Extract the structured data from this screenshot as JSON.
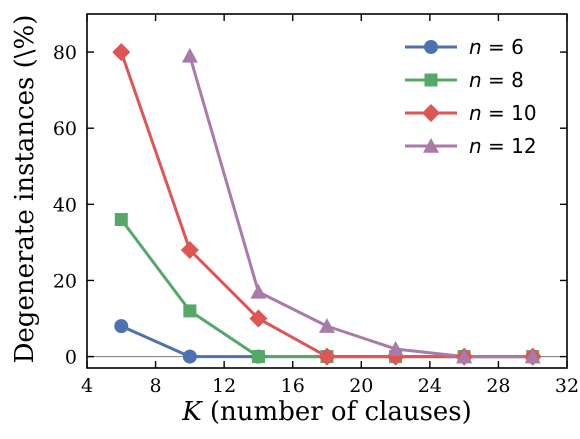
{
  "chart_data": {
    "type": "line",
    "xlabel_var": "K",
    "xlabel_rest": " (number of clauses)",
    "ylabel": "Degenerate instances (\\%)",
    "xlim": [
      4,
      32
    ],
    "ylim": [
      -3,
      90
    ],
    "xticks": [
      4,
      8,
      12,
      16,
      20,
      24,
      28,
      32
    ],
    "yticks": [
      0,
      20,
      40,
      60,
      80
    ],
    "zero_line": true,
    "legend_position": "top-right",
    "series": [
      {
        "name_var": "n",
        "name_eq": " = 6",
        "color": "#4c72b0",
        "marker": "circle",
        "x": [
          6,
          10,
          14,
          18,
          22,
          26,
          30
        ],
        "y": [
          8,
          0,
          0,
          0,
          0,
          0,
          0
        ]
      },
      {
        "name_var": "n",
        "name_eq": " = 8",
        "color": "#55a868",
        "marker": "square",
        "x": [
          6,
          10,
          14,
          18,
          22,
          26,
          30
        ],
        "y": [
          36,
          12,
          0,
          0,
          0,
          0,
          0
        ]
      },
      {
        "name_var": "n",
        "name_eq": " = 10",
        "color": "#dd5555",
        "marker": "diamond",
        "x": [
          6,
          10,
          14,
          18,
          22,
          26,
          30
        ],
        "y": [
          80,
          28,
          10,
          0,
          0,
          0,
          0
        ]
      },
      {
        "name_var": "n",
        "name_eq": " = 12",
        "color": "#a97ba9",
        "marker": "triangle",
        "x": [
          10,
          14,
          18,
          22,
          26,
          30
        ],
        "y": [
          79,
          17,
          8,
          2,
          0,
          0
        ]
      }
    ]
  }
}
